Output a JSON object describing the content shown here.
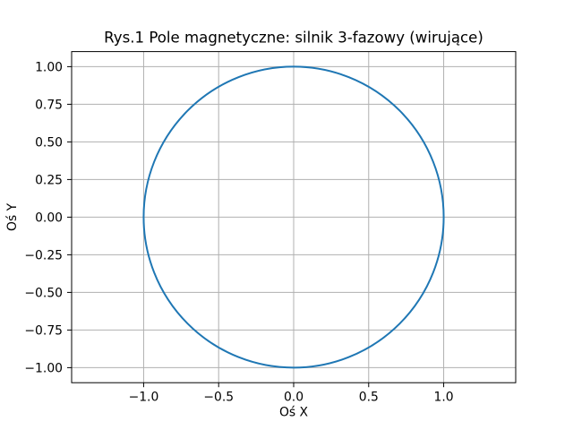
{
  "chart_data": {
    "type": "line",
    "title": "Rys.1 Pole magnetyczne: silnik 3-fazowy (wirujące)",
    "xlabel": "Oś X",
    "ylabel": "Oś Y",
    "xlim": [
      -1.48,
      1.48
    ],
    "ylim": [
      -1.1,
      1.1
    ],
    "aspect": "equal",
    "grid": true,
    "legend": false,
    "xticks": [
      -1.0,
      -0.5,
      0.0,
      0.5,
      1.0
    ],
    "xtick_labels": [
      "−1.0",
      "−0.5",
      "0.0",
      "0.5",
      "1.0"
    ],
    "yticks": [
      1.0,
      0.75,
      0.5,
      0.25,
      0.0,
      -0.25,
      -0.5,
      -0.75,
      -1.0
    ],
    "ytick_labels": [
      "1.00",
      "0.75",
      "0.50",
      "0.25",
      "0.00",
      "−0.25",
      "−0.50",
      "−0.75",
      "−1.00"
    ],
    "series": [
      {
        "shape": "circle",
        "center_x": 0.0,
        "center_y": 0.0,
        "radius": 1.0,
        "parametric_x": "cos(wt)",
        "parametric_y": "sin(wt)",
        "color": "#1f77b4"
      }
    ],
    "colors": {
      "line": "#1f77b4",
      "grid": "#b0b0b0",
      "spine": "#000000",
      "text": "#000000",
      "background": "#ffffff"
    }
  }
}
